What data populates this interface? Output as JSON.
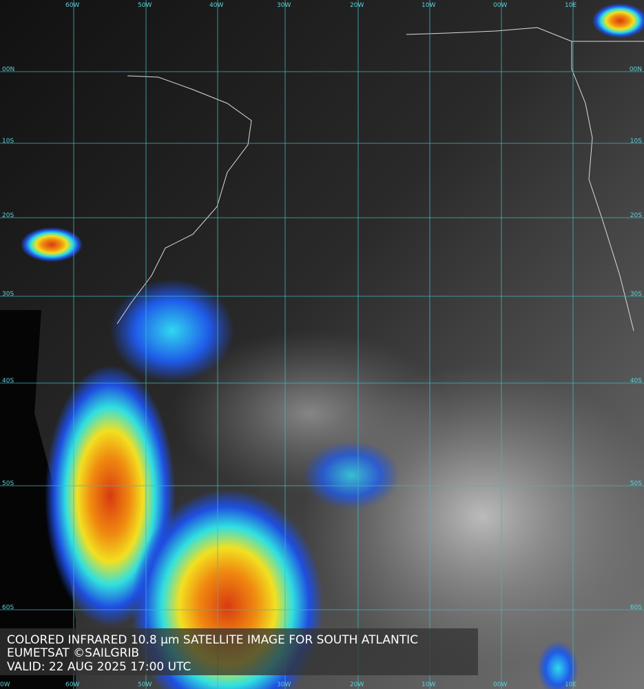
{
  "map": {
    "caption": [
      "COLORED INFRARED 10.8 µm SATELLITE IMAGE FOR SOUTH ATLANTIC",
      "EUMETSAT ©SAILGRIB",
      "VALID:  22 AUG 2025 17:00 UTC"
    ],
    "top_labels": [
      "60W",
      "50W",
      "40W",
      "30W",
      "20W",
      "10W",
      "00W",
      "10E"
    ],
    "bottom_labels": [
      "0W",
      "60W",
      "50W",
      "40W",
      "30W",
      "20W",
      "10W",
      "00W",
      "10E"
    ],
    "left_labels": [
      "00N",
      "10S",
      "20S",
      "30S",
      "40S",
      "50S",
      "60S"
    ],
    "right_labels": [
      "00N",
      "10S",
      "20S",
      "30S",
      "40S",
      "50S",
      "60S"
    ]
  }
}
